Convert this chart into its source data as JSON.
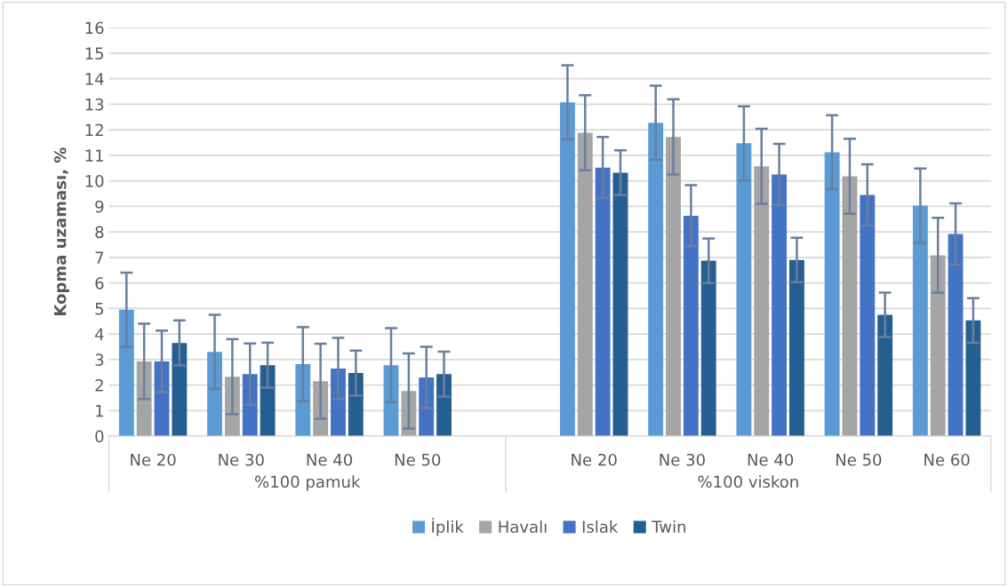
{
  "chart_data": {
    "type": "bar",
    "ylabel": "Kopma uzaması, %",
    "categories": [
      "Ne 20",
      "Ne 30",
      "Ne 40",
      "Ne 50",
      null,
      "Ne 20",
      "Ne 30",
      "Ne 40",
      "Ne 50",
      "Ne 60"
    ],
    "series": [
      {
        "name": "İplik",
        "color": "#5b9bd5",
        "values": [
          4.95,
          3.3,
          2.82,
          2.78,
          null,
          13.07,
          12.27,
          11.47,
          11.12,
          9.03
        ],
        "errors": [
          1.45,
          1.45,
          1.45,
          1.45,
          null,
          1.45,
          1.45,
          1.45,
          1.45,
          1.45
        ]
      },
      {
        "name": "Havalı",
        "color": "#a5a5a5",
        "values": [
          2.93,
          2.33,
          2.15,
          1.77,
          null,
          11.88,
          11.72,
          10.57,
          10.18,
          7.08
        ],
        "errors": [
          1.47,
          1.47,
          1.47,
          1.47,
          null,
          1.47,
          1.47,
          1.47,
          1.47,
          1.47
        ]
      },
      {
        "name": "Islak",
        "color": "#4472c4",
        "values": [
          2.93,
          2.43,
          2.65,
          2.3,
          null,
          10.52,
          8.63,
          10.25,
          9.45,
          7.92
        ],
        "errors": [
          1.2,
          1.2,
          1.2,
          1.2,
          null,
          1.2,
          1.2,
          1.2,
          1.2,
          1.2
        ]
      },
      {
        "name": "Twin",
        "color": "#255e91",
        "values": [
          3.65,
          2.78,
          2.47,
          2.43,
          null,
          10.32,
          6.87,
          6.9,
          4.75,
          4.53
        ],
        "errors": [
          0.88,
          0.88,
          0.88,
          0.88,
          null,
          0.87,
          0.87,
          0.87,
          0.87,
          0.87
        ]
      }
    ],
    "annotations": [
      "%100 pamuk",
      "%100 viskon"
    ],
    "ylim": [
      0,
      16
    ],
    "yticks": [
      0,
      1,
      2,
      3,
      4,
      5,
      6,
      7,
      8,
      9,
      10,
      11,
      12,
      13,
      14,
      15,
      16
    ],
    "grid": "y",
    "legend": "bottom"
  }
}
